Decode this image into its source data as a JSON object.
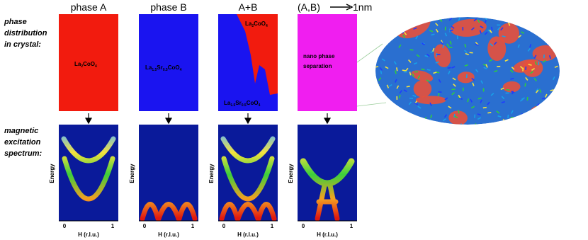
{
  "row_labels": [
    [
      "phase",
      "distribution",
      "in crystal:"
    ],
    [
      "magnetic",
      "excitation",
      "spectrum:"
    ]
  ],
  "panels": [
    {
      "title": "phase A",
      "labels": [
        {
          "parts": [
            "La",
            "2",
            "CoO",
            "4"
          ]
        }
      ]
    },
    {
      "title": "phase B",
      "labels": [
        {
          "parts": [
            "La",
            "1.5",
            "Sr",
            "0.5",
            "CoO",
            "4"
          ]
        }
      ]
    },
    {
      "title": "A+B",
      "labels": [
        {
          "parts": [
            "La",
            "2",
            "CoO",
            "4"
          ]
        },
        {
          "parts": [
            "La",
            "1.5",
            "Sr",
            "0.5",
            "CoO",
            "4"
          ]
        }
      ]
    },
    {
      "title": "(A,B)",
      "title_suffix": "1nm",
      "labels": [
        {
          "lines": [
            "nano phase",
            "separation"
          ]
        }
      ]
    }
  ],
  "spectrum_axis": {
    "y_label": "Energy",
    "x_label": "H (r.l.u.)",
    "x_ticks": [
      "0",
      "1"
    ]
  }
}
